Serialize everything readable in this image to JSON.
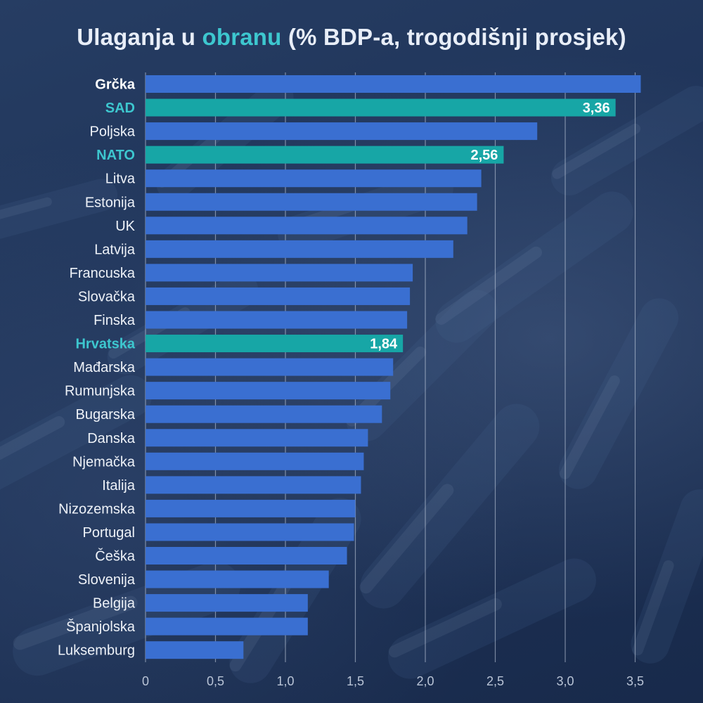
{
  "title": {
    "before": "Ulaganja u ",
    "accent": "obranu",
    "after": " (% BDP-a, trogodišnji prosjek)"
  },
  "colors": {
    "bar": "#3a6fd1",
    "highlight_bar": "#17a6a6",
    "highlight_label": "#3dc7cf",
    "label": "#eef2f8",
    "top_label": "#ffffff",
    "grid": "#c9d3e3",
    "tick": "#b9c4d6"
  },
  "chart_data": {
    "type": "bar",
    "orientation": "horizontal",
    "categories": [
      "Grčka",
      "SAD",
      "Poljska",
      "NATO",
      "Litva",
      "Estonija",
      "UK",
      "Latvija",
      "Francuska",
      "Slovačka",
      "Finska",
      "Hrvatska",
      "Mađarska",
      "Rumunjska",
      "Bugarska",
      "Danska",
      "Njemačka",
      "Italija",
      "Nizozemska",
      "Portugal",
      "Češka",
      "Slovenija",
      "Belgija",
      "Španjolska",
      "Luksemburg"
    ],
    "values": [
      3.54,
      3.36,
      2.8,
      2.56,
      2.4,
      2.37,
      2.3,
      2.2,
      1.91,
      1.89,
      1.87,
      1.84,
      1.77,
      1.75,
      1.69,
      1.59,
      1.56,
      1.54,
      1.5,
      1.49,
      1.44,
      1.31,
      1.16,
      1.16,
      0.7
    ],
    "highlighted": [
      "SAD",
      "NATO",
      "Hrvatska"
    ],
    "bold_categories": [
      "Grčka",
      "SAD",
      "NATO",
      "Hrvatska"
    ],
    "data_labels": {
      "SAD": "3,36",
      "NATO": "2,56",
      "Hrvatska": "1,84"
    },
    "xlim": [
      0,
      3.5
    ],
    "xticks": [
      0,
      0.5,
      1.0,
      1.5,
      2.0,
      2.5,
      3.0,
      3.5
    ],
    "xtick_labels": [
      "0",
      "0,5",
      "1,0",
      "1,5",
      "2,0",
      "2,5",
      "3,0",
      "3,5"
    ],
    "grid": true,
    "legend": "none",
    "xlabel": "",
    "ylabel": ""
  }
}
